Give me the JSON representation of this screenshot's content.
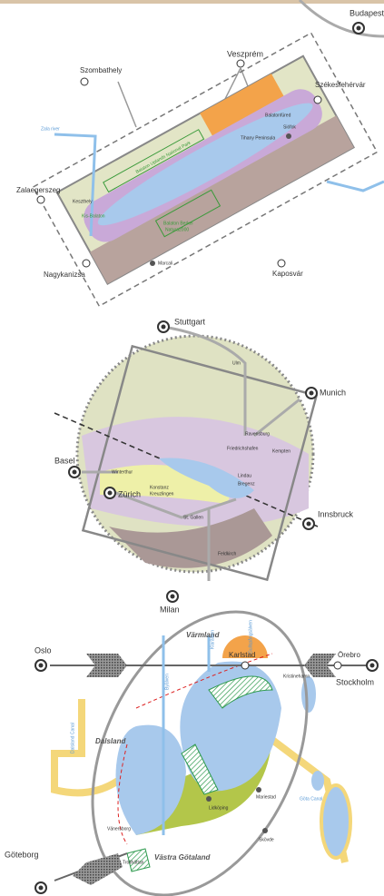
{
  "maps": [
    {
      "labels": [
        "Budapest",
        "Veszprém",
        "Székesfehérvár",
        "Szombathely",
        "Zala river",
        "Balaton Uplands National Park",
        "Tihany Peninsula",
        "Balatonfüred",
        "Siófok",
        "Keszthely",
        "Zalaegerszeg",
        "Kis-Balaton",
        "Balaton Berkei",
        "Natura2000",
        "Marcali",
        "Nagykanizsa",
        "Kaposvár"
      ]
    },
    {
      "labels": [
        "Stuttgart",
        "Ulm",
        "Munich",
        "Ravensburg",
        "Friedrichshafen",
        "Kempten",
        "Basel",
        "Konstanz",
        "Kreuzlingen",
        "Winterthur",
        "Zürich",
        "Lindau",
        "Bregenz",
        "St. Gallen",
        "Innsbruck",
        "Feldkirch",
        "Milan"
      ]
    },
    {
      "labels": [
        "Värmland",
        "Oslo",
        "Karlstad",
        "Örebro",
        "Stockholm",
        "Kristinehamn",
        "Dalsland",
        "Dalsland Canal",
        "Göta Canal",
        "Mariestad",
        "Lidköping",
        "Vänersborg",
        "Trollhättan",
        "Västra Götaland",
        "Skövde",
        "Göteborg",
        "Klarälven",
        "Byälven",
        "Gullspångsälven"
      ]
    }
  ]
}
